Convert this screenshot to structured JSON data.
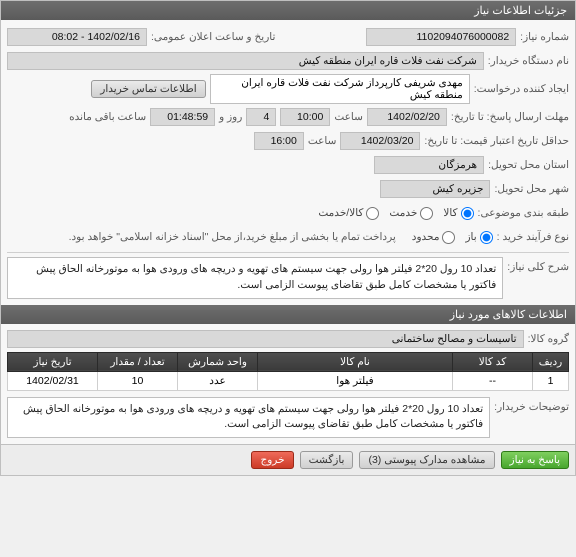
{
  "panel_title": "جزئیات اطلاعات نیاز",
  "fields": {
    "req_number_label": "شماره نیاز:",
    "req_number": "1102094076000082",
    "announce_label": "تاریخ و ساعت اعلان عمومی:",
    "announce_value": "1402/02/16 - 08:02",
    "buyer_org_label": "نام دستگاه خریدار:",
    "buyer_org": "شرکت نفت فلات قاره ایران منطقه کیش",
    "creator_label": "ایجاد کننده درخواست:",
    "creator": "مهدی شریفی کارپرداز شرکت نفت فلات قاره ایران منطقه کیش",
    "contact_btn": "اطلاعات تماس خریدار",
    "send_deadline_label": "مهلت ارسال پاسخ: تا تاریخ:",
    "send_deadline_date": "1402/02/20",
    "send_deadline_time_label": "ساعت",
    "send_deadline_time": "10:00",
    "remain_days_label": "روز و",
    "remain_days": "4",
    "remain_time": "01:48:59",
    "remain_suffix": "ساعت باقی مانده",
    "valid_until_label": "حداقل تاریخ اعتبار قیمت: تا تاریخ:",
    "valid_until_date": "1402/03/20",
    "valid_until_time_label": "ساعت",
    "valid_until_time": "16:00",
    "province_label": "استان محل تحویل:",
    "province": "هرمزگان",
    "city_label": "شهر محل تحویل:",
    "city": "جزیره کیش",
    "class_label": "طبقه بندی موضوعی:",
    "buy_process_label": "نوع فرآیند خرید :",
    "buy_process_note": "پرداخت تمام یا بخشی از مبلغ خرید،از محل \"اسناد خزانه اسلامی\" خواهد بود.",
    "radio_goods": "کالا",
    "radio_service": "خدمت",
    "radio_goods_service": "کالا/خدمت",
    "radio_open": "باز",
    "radio_limited": "محدود",
    "summary_label": "شرح کلی نیاز:",
    "summary_text": "تعداد 10 رول 20*2 فیلتر هوا رولی جهت سیستم های تهویه و دریچه های ورودی هوا به موتورخانه الحاق پیش فاکتور یا مشخصات کامل طبق تقاضای پیوست الزامی است.",
    "items_header": "اطلاعات کالاهای مورد نیاز",
    "group_label": "گروه کالا:",
    "group_value": "تاسیسات و مصالح ساختمانی",
    "buyer_notes_label": "توضیحات خریدار:",
    "buyer_notes_text": "تعداد 10 رول 20*2 فیلتر هوا رولی جهت سیستم های تهویه و دریچه های ورودی هوا به موتورخانه الحاق پیش فاکتور یا مشخصات کامل طبق تقاضای پیوست الزامی است."
  },
  "grid": {
    "columns": [
      "ردیف",
      "کد کالا",
      "نام کالا",
      "واحد شمارش",
      "تعداد / مقدار",
      "تاریخ نیاز"
    ],
    "rows": [
      [
        "1",
        "--",
        "فیلتر هوا",
        "عدد",
        "10",
        "1402/02/31"
      ]
    ],
    "col_widths": [
      "36px",
      "80px",
      "auto",
      "80px",
      "80px",
      "90px"
    ]
  },
  "footer": {
    "reply_btn": "پاسخ به نیاز",
    "attachments_btn": "مشاهده مدارک پیوستی (3)",
    "back_btn": "بازگشت",
    "exit_btn": "خروج"
  },
  "colors": {
    "panel_header_bg": "#5a5a5a",
    "value_box_bg": "#d9d9d9",
    "border": "#bfbfbf"
  }
}
